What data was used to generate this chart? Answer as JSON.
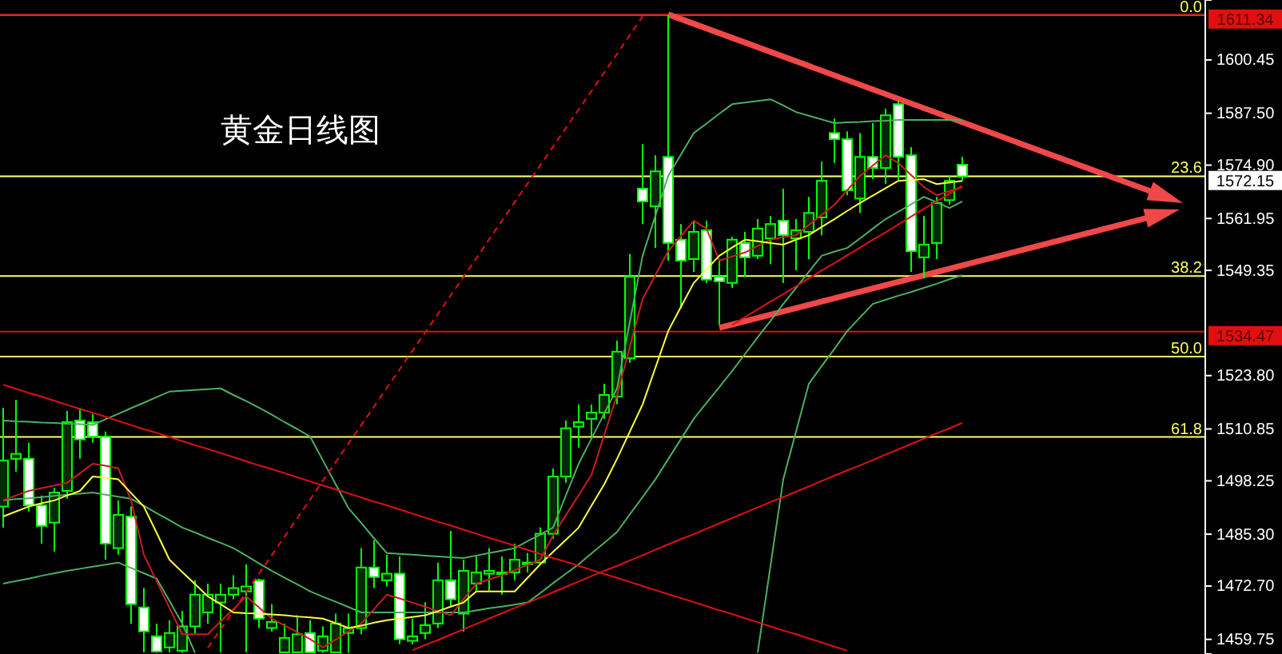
{
  "chart_data": {
    "type": "candlestick",
    "annotations": [
      "黄金日线图",
      {
        "text": "0.0",
        "y": 1611.34
      },
      {
        "text": "23.6",
        "y": 1572.2
      },
      {
        "text": "38.2",
        "y": 1548.0
      },
      {
        "text": "50.0",
        "y": 1528.4
      },
      {
        "text": "61.8",
        "y": 1508.9
      }
    ],
    "ylim": [
      1456.2,
      1615
    ],
    "tick_labels": "y",
    "yticks": [
      {
        "value": 1459.75,
        "label": "1459.75"
      },
      {
        "value": 1472.7,
        "label": "1472.70"
      },
      {
        "value": 1485.3,
        "label": "1485.30"
      },
      {
        "value": 1498.25,
        "label": "1498.25"
      },
      {
        "value": 1510.85,
        "label": "1510.85"
      },
      {
        "value": 1523.8,
        "label": "1523.80"
      },
      {
        "value": 1549.35,
        "label": "1549.35"
      },
      {
        "value": 1561.95,
        "label": "1561.95"
      },
      {
        "value": 1574.9,
        "label": "1574.90"
      },
      {
        "value": 1587.5,
        "label": "1587.50"
      },
      {
        "value": 1600.45,
        "label": "1600.45"
      }
    ],
    "categories": [
      null,
      null,
      null,
      null,
      null,
      null,
      null,
      null,
      null,
      null,
      null,
      null,
      null,
      null,
      null,
      null,
      null,
      null,
      null,
      null,
      null,
      null,
      null,
      null,
      null,
      null,
      null,
      null,
      null,
      null,
      null,
      null,
      null,
      null,
      null,
      null,
      null,
      null,
      null,
      null,
      null,
      null,
      null,
      null,
      null,
      null,
      null,
      null,
      null,
      null,
      null,
      null,
      null,
      null,
      null,
      null,
      null,
      null,
      null,
      null,
      null,
      null,
      null,
      null,
      null,
      null,
      null,
      null,
      null,
      null,
      null,
      null,
      null,
      null,
      null,
      null
    ],
    "ohlc": [
      [
        1492.0,
        1516.0,
        1486.9,
        1503.2
      ],
      [
        1503.6,
        1517.9,
        1500.5,
        1504.8
      ],
      [
        1503.6,
        1507.5,
        1490.8,
        1492.3
      ],
      [
        1492.3,
        1494.7,
        1483.0,
        1487.3
      ],
      [
        1488.1,
        1496.6,
        1481.1,
        1495.4
      ],
      [
        1495.8,
        1515.2,
        1493.9,
        1512.5
      ],
      [
        1512.9,
        1516.0,
        1503.6,
        1508.3
      ],
      [
        1512.5,
        1514.5,
        1507.5,
        1509.0
      ],
      [
        1509.0,
        1510.2,
        1479.1,
        1483.0
      ],
      [
        1481.9,
        1493.5,
        1480.3,
        1490.0
      ],
      [
        1489.6,
        1492.0,
        1463.6,
        1468.3
      ],
      [
        1467.5,
        1472.2,
        1456.6,
        1461.7
      ],
      [
        1460.5,
        1463.6,
        1456.5,
        1456.8
      ],
      [
        1457.8,
        1464.4,
        1456.6,
        1461.3
      ],
      [
        1457.0,
        1466.7,
        1456.5,
        1462.9
      ],
      [
        1462.9,
        1474.1,
        1461.0,
        1470.6
      ],
      [
        1466.3,
        1473.3,
        1463.6,
        1470.6
      ],
      [
        1468.7,
        1473.3,
        1456.6,
        1470.6
      ],
      [
        1470.6,
        1475.3,
        1469.5,
        1472.2
      ],
      [
        1471.4,
        1478.0,
        1456.6,
        1472.6
      ],
      [
        1474.1,
        1474.5,
        1462.5,
        1464.8
      ],
      [
        1462.5,
        1468.3,
        1461.7,
        1464.0
      ],
      [
        1456.6,
        1463.6,
        1456.5,
        1460.1
      ],
      [
        1456.6,
        1465.6,
        1456.5,
        1461.0
      ],
      [
        1461.3,
        1464.4,
        1456.5,
        1456.6
      ],
      [
        1457.0,
        1462.9,
        1456.5,
        1460.5
      ],
      [
        1456.6,
        1466.0,
        1456.5,
        1463.6
      ],
      [
        1461.3,
        1466.0,
        1456.5,
        1462.5
      ],
      [
        1462.5,
        1481.9,
        1461.0,
        1477.2
      ],
      [
        1477.2,
        1483.8,
        1472.2,
        1474.9
      ],
      [
        1474.1,
        1480.3,
        1472.6,
        1475.7
      ],
      [
        1475.7,
        1479.9,
        1458.6,
        1459.8
      ],
      [
        1459.4,
        1464.8,
        1458.6,
        1460.5
      ],
      [
        1461.3,
        1468.7,
        1459.8,
        1463.2
      ],
      [
        1463.6,
        1478.4,
        1462.5,
        1474.1
      ],
      [
        1474.1,
        1486.1,
        1467.5,
        1469.5
      ],
      [
        1466.0,
        1479.1,
        1461.7,
        1476.4
      ],
      [
        1473.3,
        1479.9,
        1471.4,
        1476.0
      ],
      [
        1475.7,
        1481.9,
        1471.4,
        1476.4
      ],
      [
        1475.7,
        1479.9,
        1470.6,
        1476.0
      ],
      [
        1476.0,
        1483.0,
        1474.1,
        1479.1
      ],
      [
        1478.0,
        1480.7,
        1476.0,
        1478.4
      ],
      [
        1478.4,
        1486.9,
        1478.0,
        1485.4
      ],
      [
        1485.4,
        1501.3,
        1484.2,
        1499.3
      ],
      [
        1499.3,
        1512.9,
        1497.8,
        1511.0
      ],
      [
        1511.4,
        1516.8,
        1506.3,
        1512.5
      ],
      [
        1513.3,
        1516.8,
        1509.0,
        1514.8
      ],
      [
        1514.8,
        1521.8,
        1513.3,
        1519.1
      ],
      [
        1518.7,
        1532.3,
        1516.8,
        1529.6
      ],
      [
        1528.0,
        1553.3,
        1526.9,
        1547.8
      ],
      [
        1569.2,
        1580.0,
        1560.6,
        1566.1
      ],
      [
        1564.9,
        1577.3,
        1554.8,
        1573.4
      ],
      [
        1576.9,
        1611.34,
        1551.7,
        1556.0
      ],
      [
        1556.8,
        1560.6,
        1540.1,
        1551.7
      ],
      [
        1552.1,
        1561.4,
        1549.0,
        1558.7
      ],
      [
        1559.1,
        1561.4,
        1546.3,
        1547.1
      ],
      [
        1547.8,
        1551.7,
        1536.2,
        1546.7
      ],
      [
        1546.3,
        1557.5,
        1545.1,
        1556.8
      ],
      [
        1556.0,
        1558.7,
        1547.8,
        1552.5
      ],
      [
        1552.9,
        1561.8,
        1552.1,
        1559.5
      ],
      [
        1557.1,
        1562.6,
        1550.9,
        1560.6
      ],
      [
        1561.4,
        1569.2,
        1546.3,
        1557.9
      ],
      [
        1557.1,
        1561.8,
        1549.4,
        1559.1
      ],
      [
        1558.7,
        1567.2,
        1552.1,
        1563.3
      ],
      [
        1562.2,
        1575.8,
        1557.9,
        1571.1
      ],
      [
        1582.7,
        1586.2,
        1575.4,
        1581.2
      ],
      [
        1581.2,
        1583.1,
        1567.6,
        1568.8
      ],
      [
        1566.8,
        1582.7,
        1563.3,
        1576.9
      ],
      [
        1576.9,
        1585.1,
        1571.5,
        1574.2
      ],
      [
        1574.2,
        1588.6,
        1570.3,
        1587.0
      ],
      [
        1589.7,
        1590.5,
        1571.1,
        1576.9
      ],
      [
        1577.3,
        1579.3,
        1549.0,
        1554.0
      ],
      [
        1552.5,
        1562.6,
        1547.4,
        1555.6
      ],
      [
        1556.0,
        1567.2,
        1552.1,
        1565.7
      ],
      [
        1566.4,
        1572.3,
        1565.3,
        1571.1
      ],
      [
        1575.0,
        1576.9,
        1571.1,
        1572.15
      ]
    ],
    "series": [
      {
        "type": "line",
        "color": "#4caf60",
        "values": [
          1512.9,
          1512.7,
          1512.6,
          1512.4,
          1512.3,
          1512.1,
          1512.0,
          1511.8,
          1513.2,
          1514.5,
          1515.9,
          1517.2,
          1518.6,
          1519.9,
          1520.1,
          1520.3,
          1520.5,
          1520.7,
          1519.1,
          1517.6,
          1516.0,
          1514.3,
          1512.5,
          1510.8,
          1509.0,
          1503.2,
          1497.4,
          1491.6,
          1488.0,
          1484.3,
          1480.7,
          1480.5,
          1480.3,
          1480.1,
          1479.9,
          1479.7,
          1479.5,
          1480.1,
          1480.7,
          1481.3,
          1481.9,
          1483.6,
          1485.2,
          1486.9,
          1494.7,
          1502.4,
          1508.5,
          1514.6,
          1520.7,
          1536.8,
          1552.9,
          1562.6,
          1572.3,
          1577.5,
          1582.7,
          1585.0,
          1587.4,
          1589.7,
          1590.1,
          1590.5,
          1590.9,
          1589.4,
          1587.8,
          1586.9,
          1586.0,
          1585.1,
          1585.3,
          1585.4,
          1585.6,
          1585.7,
          1585.9,
          1585.9,
          1585.9,
          1585.9,
          1585.9,
          1585.9
        ]
      },
      {
        "type": "line",
        "color": "#4caf60",
        "values": [
          1493.5,
          1493.8,
          1494.0,
          1494.3,
          1494.6,
          1494.9,
          1495.1,
          1495.4,
          1494.9,
          1494.4,
          1493.9,
          1492.2,
          1490.4,
          1488.7,
          1486.9,
          1485.7,
          1484.4,
          1483.2,
          1481.9,
          1480.1,
          1478.2,
          1476.4,
          1474.7,
          1473.1,
          1471.4,
          1470.1,
          1468.9,
          1467.6,
          1466.3,
          1466.3,
          1466.3,
          1466.3,
          1466.3,
          1466.3,
          1466.3,
          1466.3,
          1466.3,
          1466.8,
          1467.3,
          1467.7,
          1468.2,
          1468.7,
          1471.0,
          1473.4,
          1475.7,
          1478.0,
          1480.6,
          1483.2,
          1485.8,
          1490.1,
          1494.3,
          1498.6,
          1503.5,
          1508.4,
          1513.3,
          1517.2,
          1521.0,
          1524.9,
          1529.0,
          1533.1,
          1537.1,
          1541.2,
          1545.1,
          1549.0,
          1552.9,
          1553.9,
          1554.8,
          1557.1,
          1559.5,
          1561.8,
          1563.6,
          1565.4,
          1567.2,
          1565.9,
          1564.5,
          1566.1
        ]
      },
      {
        "type": "line",
        "color": "#4caf60",
        "values": [
          1473.3,
          1473.9,
          1474.5,
          1475.2,
          1475.8,
          1476.4,
          1476.9,
          1477.4,
          1477.9,
          1478.4,
          1477.1,
          1475.8,
          1474.5,
          1469.1,
          1463.6,
          1456.5,
          null,
          null,
          null,
          null,
          null,
          null,
          null,
          null,
          null,
          null,
          null,
          null,
          null,
          null,
          null,
          null,
          null,
          null,
          null,
          null,
          null,
          null,
          null,
          null,
          null,
          null,
          null,
          null,
          null,
          null,
          null,
          null,
          null,
          null,
          null,
          null,
          null,
          null,
          null,
          null,
          null,
          null,
          null,
          1456.5,
          1477.6,
          1498.6,
          1510.2,
          1521.8,
          1526.1,
          1530.3,
          1534.6,
          1537.9,
          1541.2,
          1542.2,
          1543.2,
          1544.1,
          1545.1,
          1546.1,
          1547.2,
          1548.2
        ]
      },
      {
        "type": "line",
        "color": "#c81e1e",
        "values": [
          1493.5,
          1494.7,
          1495.8,
          1496.5,
          1497.1,
          1497.8,
          1500.1,
          1502.4,
          1501.9,
          1501.3,
          1493.5,
          1480.3,
          1473.9,
          1467.4,
          1461.0,
          1461.0,
          1461.0,
          1464.1,
          1467.1,
          1470.2,
          1467.5,
          1464.8,
          1463.1,
          1461.5,
          1459.8,
          1457.8,
          1459.7,
          1461.7,
          1463.6,
          1467.1,
          1470.6,
          1469.7,
          1468.7,
          1467.7,
          1466.6,
          1465.6,
          1469.5,
          1473.3,
          1474.3,
          1475.3,
          1476.6,
          1477.8,
          1479.1,
          1485.0,
          1489.9,
          1494.8,
          1499.7,
          1509.4,
          1519.1,
          1530.8,
          1542.4,
          1548.2,
          1554.0,
          1557.7,
          1561.4,
          1559.5,
          1551.7,
          1552.7,
          1553.7,
          1555.3,
          1556.8,
          1557.4,
          1557.9,
          1560.4,
          1562.8,
          1565.3,
          1568.8,
          1572.3,
          1574.8,
          1577.3,
          1575.4,
          1572.5,
          1569.6,
          1567.6,
          1568.6,
          1569.6
        ]
      },
      {
        "type": "line",
        "color": "#ffff40",
        "values": [
          1489.6,
          1490.8,
          1492.0,
          1492.8,
          1493.5,
          1494.7,
          1495.8,
          1499.3,
          1499.0,
          1498.6,
          1495.3,
          1492.0,
          1485.6,
          1479.1,
          1476.1,
          1473.2,
          1470.2,
          1468.3,
          1466.3,
          1466.1,
          1466.0,
          1465.8,
          1465.6,
          1465.3,
          1465.1,
          1464.8,
          1463.7,
          1462.5,
          1463.1,
          1463.8,
          1464.4,
          1464.8,
          1465.2,
          1465.6,
          1466.6,
          1467.7,
          1468.7,
          1471.4,
          1471.4,
          1471.4,
          1471.4,
          1474.7,
          1478.0,
          1481.0,
          1483.9,
          1486.9,
          1492.2,
          1497.4,
          1503.6,
          1510.2,
          1516.8,
          1525.7,
          1534.6,
          1540.5,
          1546.3,
          1549.6,
          1552.9,
          1554.9,
          1556.8,
          1556.4,
          1556.0,
          1555.6,
          1556.8,
          1557.9,
          1559.9,
          1561.8,
          1563.8,
          1565.7,
          1567.5,
          1569.3,
          1571.1,
          1571.3,
          1571.5,
          1570.3,
          1570.7,
          1571.1
        ]
      },
      {
        "type": "line",
        "color": "#e01010",
        "values": [
          1521.6,
          1520.6,
          1519.6,
          1518.7,
          1517.7,
          1516.7,
          1515.7,
          1514.8,
          1513.8,
          1512.8,
          1511.8,
          1510.8,
          1509.9,
          1508.9,
          1507.9,
          1506.9,
          1506.0,
          1505.0,
          1504.0,
          1503.0,
          1502.0,
          1501.1,
          1500.1,
          1499.1,
          1498.1,
          1497.1,
          1496.2,
          1495.2,
          1494.2,
          1493.2,
          1492.3,
          1491.3,
          1490.3,
          1489.3,
          1488.3,
          1487.4,
          1486.4,
          1485.4,
          1484.4,
          1483.5,
          1482.5,
          1481.5,
          1480.5,
          1479.5,
          1478.6,
          1477.6,
          1476.6,
          1475.6,
          1474.7,
          1473.7,
          1472.7,
          1471.7,
          1470.7,
          1469.8,
          1468.8,
          1467.8,
          1466.8,
          1465.9,
          1464.9,
          1463.9,
          1462.9,
          1461.9,
          1461.0,
          1460.0,
          1459.0,
          1458.0,
          1457.0,
          null,
          null,
          null,
          null,
          null,
          null,
          null,
          null,
          null
        ]
      },
      {
        "type": "line",
        "color": "#e01010",
        "values": [
          null,
          null,
          null,
          null,
          null,
          null,
          null,
          null,
          null,
          null,
          null,
          null,
          null,
          null,
          null,
          null,
          null,
          null,
          null,
          null,
          null,
          null,
          null,
          null,
          null,
          null,
          null,
          null,
          null,
          null,
          null,
          null,
          1457.1,
          1458.4,
          1459.6,
          1460.9,
          1462.2,
          1463.5,
          1464.8,
          1466.1,
          1467.4,
          1468.6,
          1469.9,
          1471.2,
          1472.5,
          1473.8,
          1475.1,
          1476.4,
          1477.6,
          1478.9,
          1480.2,
          1481.5,
          1482.8,
          1484.1,
          1485.3,
          1486.6,
          1487.9,
          1489.2,
          1490.5,
          1491.8,
          1493.1,
          1494.3,
          1495.6,
          1496.9,
          1498.2,
          1499.5,
          1500.8,
          1502.0,
          1503.3,
          1504.6,
          1505.9,
          1507.2,
          1508.5,
          1509.8,
          1511.0,
          1512.3
        ]
      },
      {
        "type": "line",
        "color": "#e01010",
        "line_style": "dashed",
        "values": [
          null,
          null,
          null,
          null,
          null,
          null,
          null,
          null,
          null,
          null,
          null,
          null,
          null,
          null,
          null,
          null,
          1457.7,
          1462.2,
          1466.7,
          1471.2,
          1475.7,
          1480.2,
          1484.7,
          1489.2,
          1493.7,
          1498.3,
          1502.8,
          1507.3,
          1511.8,
          1516.3,
          1520.8,
          1525.3,
          1529.8,
          1534.3,
          1538.8,
          1543.3,
          1547.8,
          1552.3,
          1556.9,
          1561.4,
          1565.9,
          1570.4,
          1574.9,
          1579.4,
          1583.9,
          1588.4,
          1592.9,
          1597.4,
          1601.9,
          1606.5,
          1611.0,
          null,
          null,
          null,
          null,
          null,
          null,
          null,
          null,
          null,
          null,
          null,
          null,
          null,
          null,
          null,
          null,
          null,
          null,
          null,
          null,
          null,
          null,
          null,
          null,
          null
        ]
      },
      {
        "type": "line",
        "color": "#e01010",
        "values": [
          null,
          null,
          null,
          null,
          null,
          null,
          null,
          null,
          null,
          null,
          null,
          null,
          null,
          null,
          null,
          null,
          null,
          null,
          null,
          null,
          null,
          null,
          null,
          null,
          null,
          null,
          null,
          null,
          null,
          null,
          null,
          null,
          null,
          null,
          null,
          null,
          null,
          null,
          null,
          null,
          null,
          null,
          null,
          null,
          null,
          null,
          null,
          null,
          null,
          null,
          null,
          null,
          null,
          null,
          null,
          null,
          null,
          1536.1,
          1538.0,
          1539.9,
          1541.8,
          1543.6,
          1545.5,
          1547.4,
          1549.3,
          1551.1,
          1553.0,
          1554.9,
          1556.8,
          1558.6,
          1560.5,
          1562.4,
          1564.3,
          1566.1,
          1568.0,
          1569.9
        ]
      }
    ],
    "ref_lines": [
      {
        "axis": "y",
        "value": 1572.15,
        "color": "#2828a0",
        "label": "1572.15"
      },
      {
        "axis": "y",
        "value": 1611.34,
        "color": "#ffff60"
      },
      {
        "axis": "y",
        "value": 1572.2,
        "color": "#ffff60"
      },
      {
        "axis": "y",
        "value": 1548.0,
        "color": "#ffff60"
      },
      {
        "axis": "y",
        "value": 1528.4,
        "color": "#ffff60"
      },
      {
        "axis": "y",
        "value": 1508.9,
        "color": "#ffff60"
      },
      {
        "axis": "y",
        "value": 1611.34,
        "label": "1611.34",
        "color": "#e01010"
      },
      {
        "axis": "y",
        "value": 1534.47,
        "label": "1534.47",
        "color": "#e01010"
      }
    ]
  }
}
